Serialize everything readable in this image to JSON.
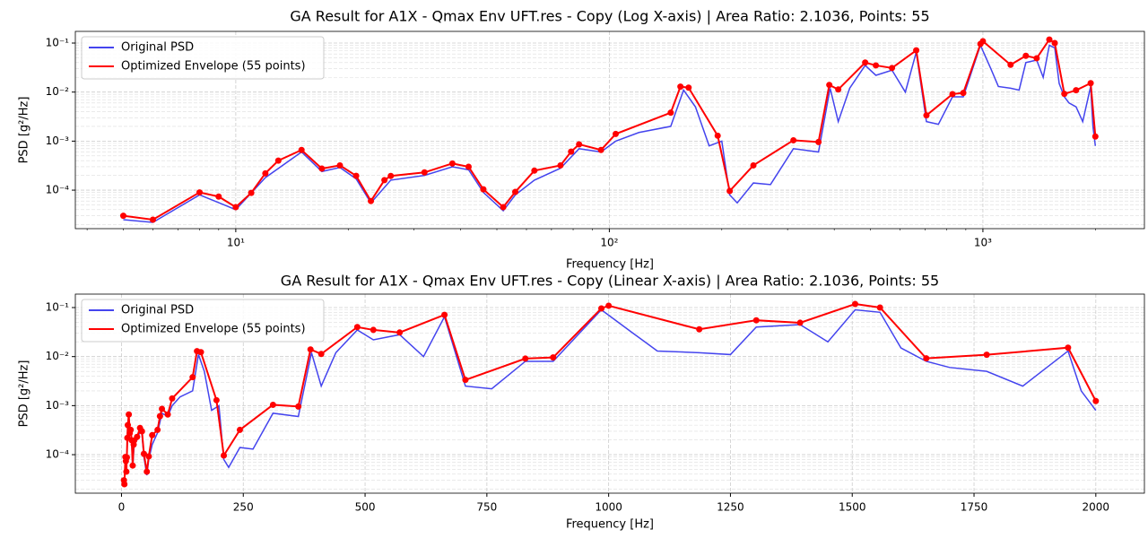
{
  "chart_data": [
    {
      "type": "line",
      "title": "GA Result for A1X - Qmax Env UFT.res - Copy (Log X-axis) | Area Ratio: 2.1036, Points: 55",
      "x_label": "Frequency [Hz]",
      "y_label": "PSD [g²/Hz]",
      "xscale": "log",
      "yscale": "log",
      "grid": true,
      "legend": "upper left",
      "xlim": [
        3.72,
        2706
      ],
      "ylim": [
        1.64e-05,
        0.173
      ],
      "xticks": [
        {
          "value": 10,
          "label": "10¹"
        },
        {
          "value": 100,
          "label": "10²"
        },
        {
          "value": 1000,
          "label": "10³"
        }
      ],
      "yticks": [
        {
          "value": 0.0001,
          "label": "10⁻⁴"
        },
        {
          "value": 0.001,
          "label": "10⁻³"
        },
        {
          "value": 0.01,
          "label": "10⁻²"
        },
        {
          "value": 0.1,
          "label": "10⁻¹"
        }
      ],
      "series": [
        {
          "name": "Original PSD",
          "color": "#4444ee",
          "markers": false,
          "x": [
            5,
            6,
            8,
            10,
            12,
            15,
            17,
            19,
            21,
            23,
            26,
            32,
            38,
            42,
            46,
            52,
            56,
            63,
            74,
            83,
            95,
            104,
            120,
            146,
            158,
            170,
            185,
            200,
            210,
            220,
            243,
            270,
            311,
            363,
            390,
            410,
            440,
            484,
            517,
            571,
            620,
            663,
            706,
            760,
            829,
            886,
            985,
            1050,
            1100,
            1186,
            1250,
            1303,
            1393,
            1450,
            1506,
            1557,
            1600,
            1652,
            1700,
            1776,
            1850,
            1943,
            1970,
            2000
          ],
          "values": [
            2.5e-05,
            2.2e-05,
            8e-05,
            4e-05,
            0.00018,
            0.0006,
            0.00024,
            0.00029,
            0.00017,
            5.5e-05,
            0.00016,
            0.0002,
            0.0003,
            0.00026,
            9e-05,
            3.8e-05,
            8e-05,
            0.00016,
            0.00028,
            0.0007,
            0.0006,
            0.001,
            0.0015,
            0.002,
            0.011,
            0.005,
            0.0008,
            0.001,
            8e-05,
            5.5e-05,
            0.00014,
            0.00013,
            0.0007,
            0.0006,
            0.012,
            0.0025,
            0.012,
            0.035,
            0.022,
            0.028,
            0.01,
            0.065,
            0.0025,
            0.0022,
            0.008,
            0.008,
            0.09,
            0.03,
            0.013,
            0.012,
            0.011,
            0.04,
            0.045,
            0.02,
            0.09,
            0.08,
            0.015,
            0.008,
            0.006,
            0.005,
            0.0025,
            0.013,
            0.002,
            0.0008
          ]
        },
        {
          "name": "Optimized Envelope (55 points)",
          "color": "#ff0000",
          "markers": true,
          "x": [
            5,
            6,
            8,
            9,
            10,
            11,
            12,
            13,
            15,
            17,
            19,
            21,
            23,
            25,
            26,
            32,
            38,
            42,
            46,
            52,
            56,
            63,
            74,
            79,
            83,
            95,
            104,
            146,
            155,
            163,
            195,
            210,
            243,
            311,
            363,
            388,
            410,
            484,
            517,
            571,
            663,
            706,
            829,
            886,
            985,
            1000,
            1186,
            1303,
            1393,
            1506,
            1557,
            1652,
            1776,
            1943,
            2000
          ],
          "values": [
            3e-05,
            2.5e-05,
            9e-05,
            7.4e-05,
            4.5e-05,
            8.8e-05,
            0.00022,
            0.0004,
            0.00066,
            0.000275,
            0.00032,
            0.000196,
            6e-05,
            0.00016,
            0.000195,
            0.00023,
            0.00035,
            0.0003,
            0.000104,
            4.5e-05,
            9.2e-05,
            0.00025,
            0.00032,
            0.00061,
            0.00086,
            0.00066,
            0.0014,
            0.0038,
            0.0129,
            0.0123,
            0.00129,
            9.6e-05,
            0.00032,
            0.00104,
            0.00096,
            0.014,
            0.0113,
            0.04,
            0.035,
            0.031,
            0.071,
            0.00335,
            0.0091,
            0.0096,
            0.096,
            0.109,
            0.036,
            0.055,
            0.049,
            0.118,
            0.1,
            0.0092,
            0.0109,
            0.0152,
            0.00124
          ]
        }
      ]
    },
    {
      "type": "line",
      "title": "GA Result for A1X - Qmax Env UFT.res - Copy (Linear X-axis) | Area Ratio: 2.1036, Points: 55",
      "x_label": "Frequency [Hz]",
      "y_label": "PSD [g²/Hz]",
      "xscale": "linear",
      "yscale": "log",
      "grid": true,
      "legend": "upper left",
      "xlim": [
        -94.75,
        2099.75
      ],
      "ylim": [
        1.64e-05,
        0.188
      ],
      "xticks": [
        0,
        250,
        500,
        750,
        1000,
        1250,
        1500,
        1750,
        2000
      ],
      "yticks": [
        {
          "value": 0.0001,
          "label": "10⁻⁴"
        },
        {
          "value": 0.001,
          "label": "10⁻³"
        },
        {
          "value": 0.01,
          "label": "10⁻²"
        },
        {
          "value": 0.1,
          "label": "10⁻¹"
        }
      ],
      "series": [
        {
          "name": "Original PSD",
          "color": "#4444ee",
          "markers": false,
          "x": [
            5,
            6,
            8,
            10,
            12,
            15,
            17,
            19,
            21,
            23,
            26,
            32,
            38,
            42,
            46,
            52,
            56,
            63,
            74,
            83,
            95,
            104,
            120,
            146,
            158,
            170,
            185,
            200,
            210,
            220,
            243,
            270,
            311,
            363,
            390,
            410,
            440,
            484,
            517,
            571,
            620,
            663,
            706,
            760,
            829,
            886,
            985,
            1050,
            1100,
            1186,
            1250,
            1303,
            1393,
            1450,
            1506,
            1557,
            1600,
            1652,
            1700,
            1776,
            1850,
            1943,
            1970,
            2000
          ],
          "values": [
            2.5e-05,
            2.2e-05,
            8e-05,
            4e-05,
            0.00018,
            0.0006,
            0.00024,
            0.00029,
            0.00017,
            5.5e-05,
            0.00016,
            0.0002,
            0.0003,
            0.00026,
            9e-05,
            3.8e-05,
            8e-05,
            0.00016,
            0.00028,
            0.0007,
            0.0006,
            0.001,
            0.0015,
            0.002,
            0.011,
            0.005,
            0.0008,
            0.001,
            8e-05,
            5.5e-05,
            0.00014,
            0.00013,
            0.0007,
            0.0006,
            0.012,
            0.0025,
            0.012,
            0.035,
            0.022,
            0.028,
            0.01,
            0.065,
            0.0025,
            0.0022,
            0.008,
            0.008,
            0.09,
            0.03,
            0.013,
            0.012,
            0.011,
            0.04,
            0.045,
            0.02,
            0.09,
            0.08,
            0.015,
            0.008,
            0.006,
            0.005,
            0.0025,
            0.013,
            0.002,
            0.0008
          ]
        },
        {
          "name": "Optimized Envelope (55 points)",
          "color": "#ff0000",
          "markers": true,
          "x": [
            5,
            6,
            8,
            9,
            10,
            11,
            12,
            13,
            15,
            17,
            19,
            21,
            23,
            25,
            26,
            32,
            38,
            42,
            46,
            52,
            56,
            63,
            74,
            79,
            83,
            95,
            104,
            146,
            155,
            163,
            195,
            210,
            243,
            311,
            363,
            388,
            410,
            484,
            517,
            571,
            663,
            706,
            829,
            886,
            985,
            1000,
            1186,
            1303,
            1393,
            1506,
            1557,
            1652,
            1776,
            1943,
            2000
          ],
          "values": [
            3e-05,
            2.5e-05,
            9e-05,
            7.4e-05,
            4.5e-05,
            8.8e-05,
            0.00022,
            0.0004,
            0.00066,
            0.000275,
            0.00032,
            0.000196,
            6e-05,
            0.00016,
            0.000195,
            0.00023,
            0.00035,
            0.0003,
            0.000104,
            4.5e-05,
            9.2e-05,
            0.00025,
            0.00032,
            0.00061,
            0.00086,
            0.00066,
            0.0014,
            0.0038,
            0.0129,
            0.0123,
            0.00129,
            9.6e-05,
            0.00032,
            0.00104,
            0.00096,
            0.014,
            0.0113,
            0.04,
            0.035,
            0.031,
            0.071,
            0.00335,
            0.0091,
            0.0096,
            0.096,
            0.109,
            0.036,
            0.055,
            0.049,
            0.118,
            0.1,
            0.0092,
            0.0109,
            0.0152,
            0.00124
          ]
        }
      ]
    }
  ]
}
